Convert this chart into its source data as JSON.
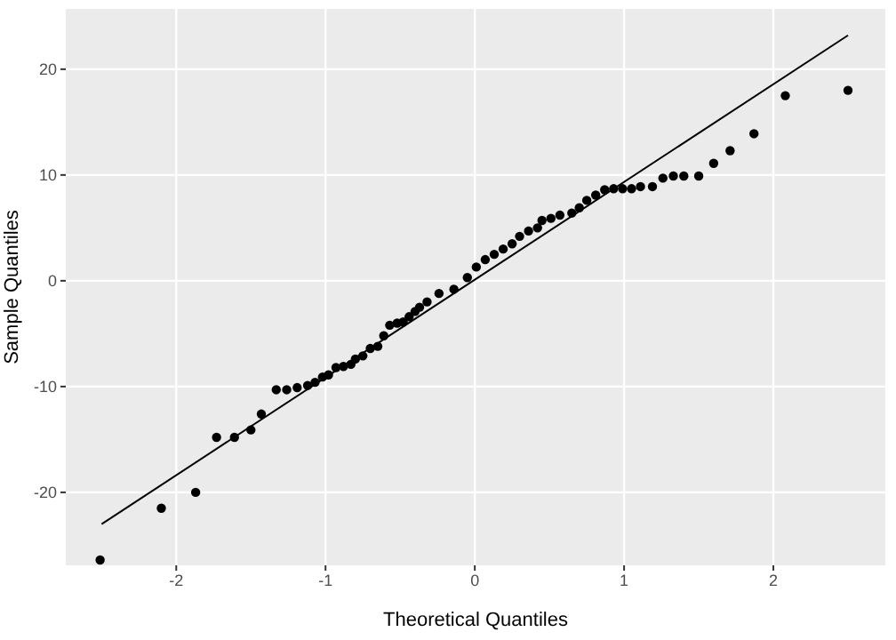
{
  "chart_data": {
    "type": "scatter",
    "xlabel": "Theoretical Quantiles",
    "ylabel": "Sample Quantiles",
    "xlim": [
      -2.74,
      2.75
    ],
    "ylim": [
      -26.9,
      25.7
    ],
    "xticks": [
      -2,
      -1,
      0,
      1,
      2
    ],
    "yticks": [
      -20,
      -10,
      0,
      10,
      20
    ],
    "grid": true,
    "series": [
      {
        "marker": "circle",
        "color": "#000000",
        "x": [
          -2.51,
          -2.1,
          -1.87,
          -1.73,
          -1.61,
          -1.5,
          -1.43,
          -1.33,
          -1.26,
          -1.19,
          -1.12,
          -1.07,
          -1.02,
          -0.98,
          -0.93,
          -0.88,
          -0.83,
          -0.8,
          -0.75,
          -0.7,
          -0.65,
          -0.61,
          -0.57,
          -0.52,
          -0.48,
          -0.44,
          -0.4,
          -0.37,
          -0.32,
          -0.24,
          -0.14,
          -0.05,
          0.01,
          0.07,
          0.13,
          0.19,
          0.25,
          0.3,
          0.36,
          0.42,
          0.45,
          0.51,
          0.57,
          0.65,
          0.7,
          0.75,
          0.81,
          0.87,
          0.93,
          0.99,
          1.05,
          1.11,
          1.19,
          1.26,
          1.33,
          1.4,
          1.5,
          1.6,
          1.71,
          1.87,
          2.08,
          2.5
        ],
        "values": [
          -26.4,
          -21.5,
          -20,
          -14.8,
          -14.8,
          -14.1,
          -12.6,
          -10.3,
          -10.3,
          -10.1,
          -9.9,
          -9.6,
          -9.1,
          -8.9,
          -8.2,
          -8.1,
          -7.9,
          -7.4,
          -7.1,
          -6.4,
          -6.2,
          -5.2,
          -4.2,
          -4,
          -3.9,
          -3.4,
          -2.9,
          -2.5,
          -2,
          -1.2,
          -0.8,
          0.3,
          1.3,
          2,
          2.5,
          3,
          3.5,
          4.2,
          4.7,
          5,
          5.7,
          5.9,
          6.2,
          6.4,
          6.9,
          7.6,
          8.1,
          8.6,
          8.7,
          8.7,
          8.7,
          8.9,
          8.9,
          9.7,
          9.9,
          9.9,
          9.9,
          11.1,
          12.3,
          13.9,
          17.5,
          18
        ]
      },
      {
        "type": "line",
        "marker": "none",
        "color": "#000000",
        "x": [
          -2.5,
          2.5
        ],
        "values": [
          -23,
          23.2
        ]
      }
    ]
  }
}
